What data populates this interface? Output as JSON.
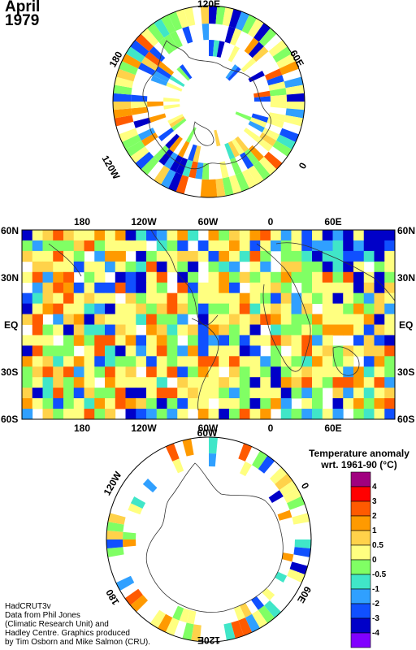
{
  "title": {
    "month": "April",
    "year": "1979"
  },
  "north_polar": {
    "lon_labels": [
      "120E",
      "60E",
      "0",
      "120W",
      "180"
    ]
  },
  "world_map": {
    "top_lon_labels": [
      "180",
      "120W",
      "60W",
      "0",
      "60E"
    ],
    "bottom_lon_labels": [
      "180",
      "120W",
      "60W",
      "0",
      "60E"
    ],
    "lat_labels": [
      "60N",
      "30N",
      "EQ",
      "30S",
      "60S"
    ]
  },
  "south_polar": {
    "lon_labels": [
      "60W",
      "120W",
      "0",
      "180",
      "60E",
      "120E"
    ]
  },
  "legend": {
    "title_line1": "Temperature anomaly",
    "title_line2": "wrt. 1961-90  (°C)",
    "items": [
      {
        "label": "4",
        "color": "#a0007f"
      },
      {
        "label": "3",
        "color": "#ff0000"
      },
      {
        "label": "2",
        "color": "#ff5a00"
      },
      {
        "label": "1",
        "color": "#ff9a00"
      },
      {
        "label": "0.5",
        "color": "#ffd24a"
      },
      {
        "label": "0",
        "color": "#ffff80"
      },
      {
        "label": "-0.5",
        "color": "#80ff64"
      },
      {
        "label": "-1",
        "color": "#40e6c8"
      },
      {
        "label": "-2",
        "color": "#30a0ff"
      },
      {
        "label": "-3",
        "color": "#1050ff"
      },
      {
        "label": "-4",
        "color": "#0000c8"
      },
      {
        "label": "",
        "color": "#8000ff"
      }
    ]
  },
  "credits": [
    "HadCRUT3v",
    "Data from Phil Jones",
    "(Climatic Research Unit) and",
    "Hadley Centre.  Graphics produced",
    "by Tim Osborn and Mike Salmon (CRU)."
  ]
}
